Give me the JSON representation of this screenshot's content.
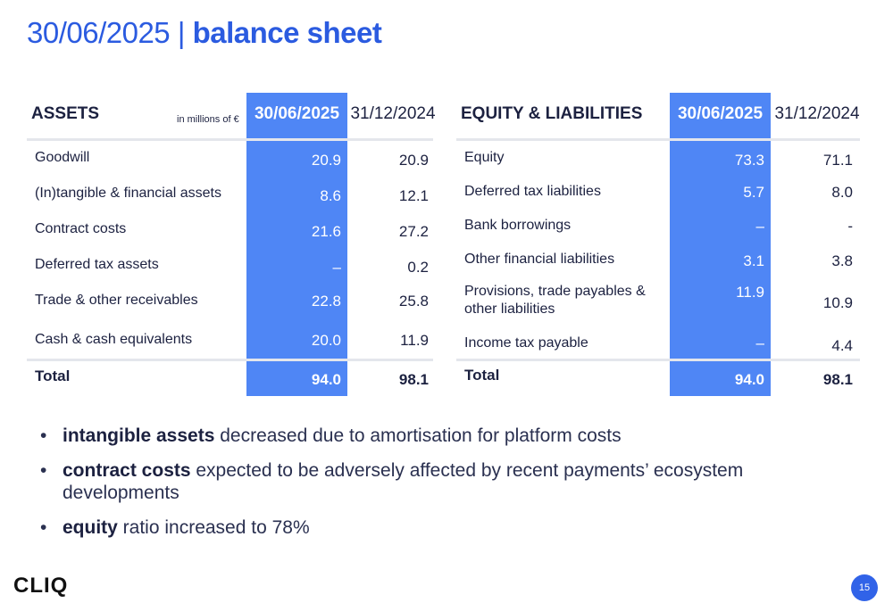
{
  "title": {
    "date": "30/06/2025",
    "separator": " | ",
    "label": "balance sheet"
  },
  "assets": {
    "header": "ASSETS",
    "unit": "in millions of €",
    "col_current": "30/06/2025",
    "col_previous": "31/12/2024",
    "rows": [
      {
        "label": "Goodwill",
        "current": "20.9",
        "previous": "20.9"
      },
      {
        "label": "(In)tangible & financial assets",
        "current": "8.6",
        "previous": "12.1"
      },
      {
        "label": "Contract costs",
        "current": "21.6",
        "previous": "27.2"
      },
      {
        "label": "Deferred tax assets",
        "current": "–",
        "previous": "0.2"
      },
      {
        "label": "Trade & other receivables",
        "current": "22.8",
        "previous": "25.8"
      },
      {
        "label": "Cash & cash equivalents",
        "current": "20.0",
        "previous": "11.9"
      }
    ],
    "total": {
      "label": "Total",
      "current": "94.0",
      "previous": "98.1"
    }
  },
  "liabilities": {
    "header": "EQUITY & LIABILITIES",
    "col_current": "30/06/2025",
    "col_previous": "31/12/2024",
    "rows": [
      {
        "label": "Equity",
        "current": "73.3",
        "previous": "71.1"
      },
      {
        "label": "Deferred tax liabilities",
        "current": "5.7",
        "previous": "8.0"
      },
      {
        "label": "Bank borrowings",
        "current": "–",
        "previous": "-"
      },
      {
        "label": "Other financial liabilities",
        "current": "3.1",
        "previous": "3.8"
      },
      {
        "label": "Provisions, trade payables &",
        "label2": "other liabilities",
        "current": "11.9",
        "previous": "10.9"
      },
      {
        "label": "Income tax payable",
        "current": "–",
        "previous": "4.4"
      }
    ],
    "total": {
      "label": "Total",
      "current": "94.0",
      "previous": "98.1"
    }
  },
  "bullets": [
    {
      "keyword": "intangible assets",
      "text": " decreased due to amortisation for platform costs"
    },
    {
      "keyword": "contract costs",
      "text": " expected to be adversely affected by recent payments’ ecosystem developments"
    },
    {
      "keyword": "equity",
      "text": " ratio increased to 78%"
    }
  ],
  "logo": "CLIQ",
  "page_number": "15",
  "colors": {
    "accent": "#4f86f5",
    "title": "#2b5be0",
    "text": "#1c2140"
  }
}
